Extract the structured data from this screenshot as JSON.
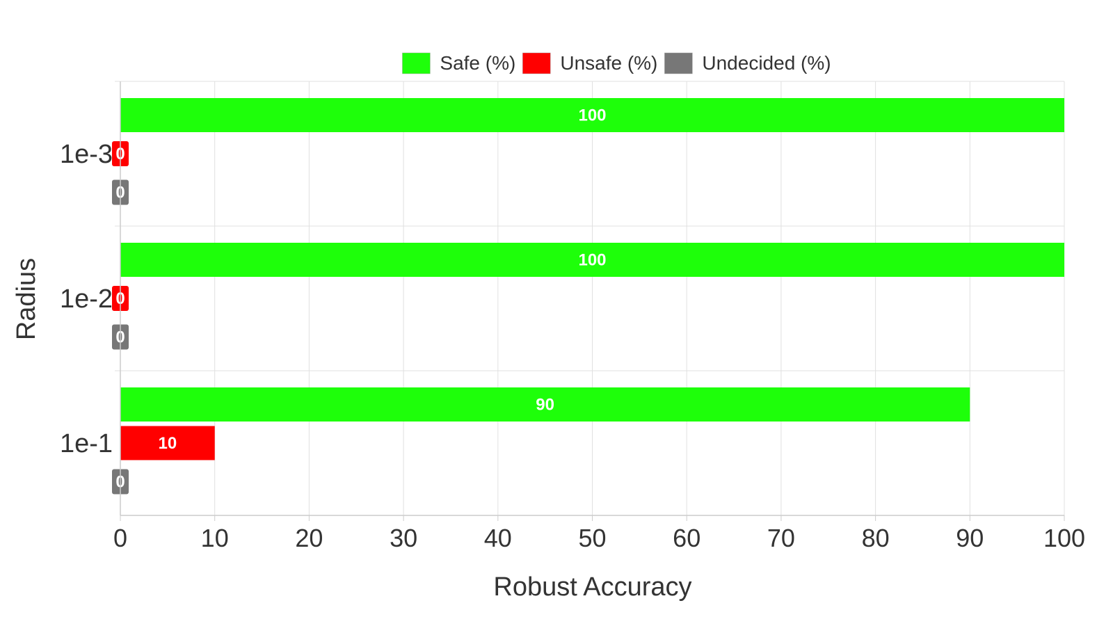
{
  "chart_data": {
    "type": "bar",
    "orientation": "horizontal",
    "categories": [
      "1e-3",
      "1e-2",
      "1e-1"
    ],
    "series": [
      {
        "name": "Safe (%)",
        "color": "#1eff0a",
        "values": [
          100,
          100,
          90
        ]
      },
      {
        "name": "Unsafe (%)",
        "color": "#ff0000",
        "values": [
          0,
          0,
          10
        ]
      },
      {
        "name": "Undecided (%)",
        "color": "#777777",
        "values": [
          0,
          0,
          0
        ]
      }
    ],
    "xlabel": "Robust Accuracy",
    "ylabel": "Radius",
    "xlim": [
      0,
      100
    ],
    "xticks": [
      0,
      10,
      20,
      30,
      40,
      50,
      60,
      70,
      80,
      90,
      100
    ],
    "grid": true,
    "legend_position": "top-center",
    "data_labels": true
  }
}
